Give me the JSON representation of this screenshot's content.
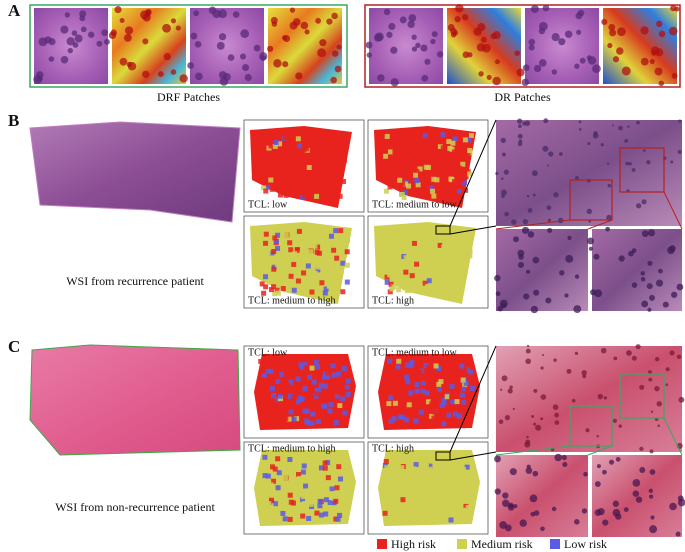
{
  "panels": [
    {
      "label": "A",
      "groups": [
        {
          "caption": "DRF Patches",
          "color": "#3aa860"
        },
        {
          "caption": "DR Patches",
          "color": "#b22222"
        }
      ]
    },
    {
      "label": "B",
      "wsi_caption": "WSI from recurrence patient",
      "heatmaps": [
        "TCL: low",
        "TCL: medium to low",
        "TCL: medium to high",
        "TCL: high"
      ]
    },
    {
      "label": "C",
      "wsi_caption": "WSI from non-recurrence patient",
      "heatmaps": [
        "TCL: low",
        "TCL: medium to low",
        "TCL: medium to high",
        "TCL: high"
      ]
    }
  ],
  "legend": [
    {
      "label": "High risk",
      "color": "#e8231e"
    },
    {
      "label": "Medium risk",
      "color": "#cfcf52"
    },
    {
      "label": "Low risk",
      "color": "#5a5ae6"
    }
  ]
}
